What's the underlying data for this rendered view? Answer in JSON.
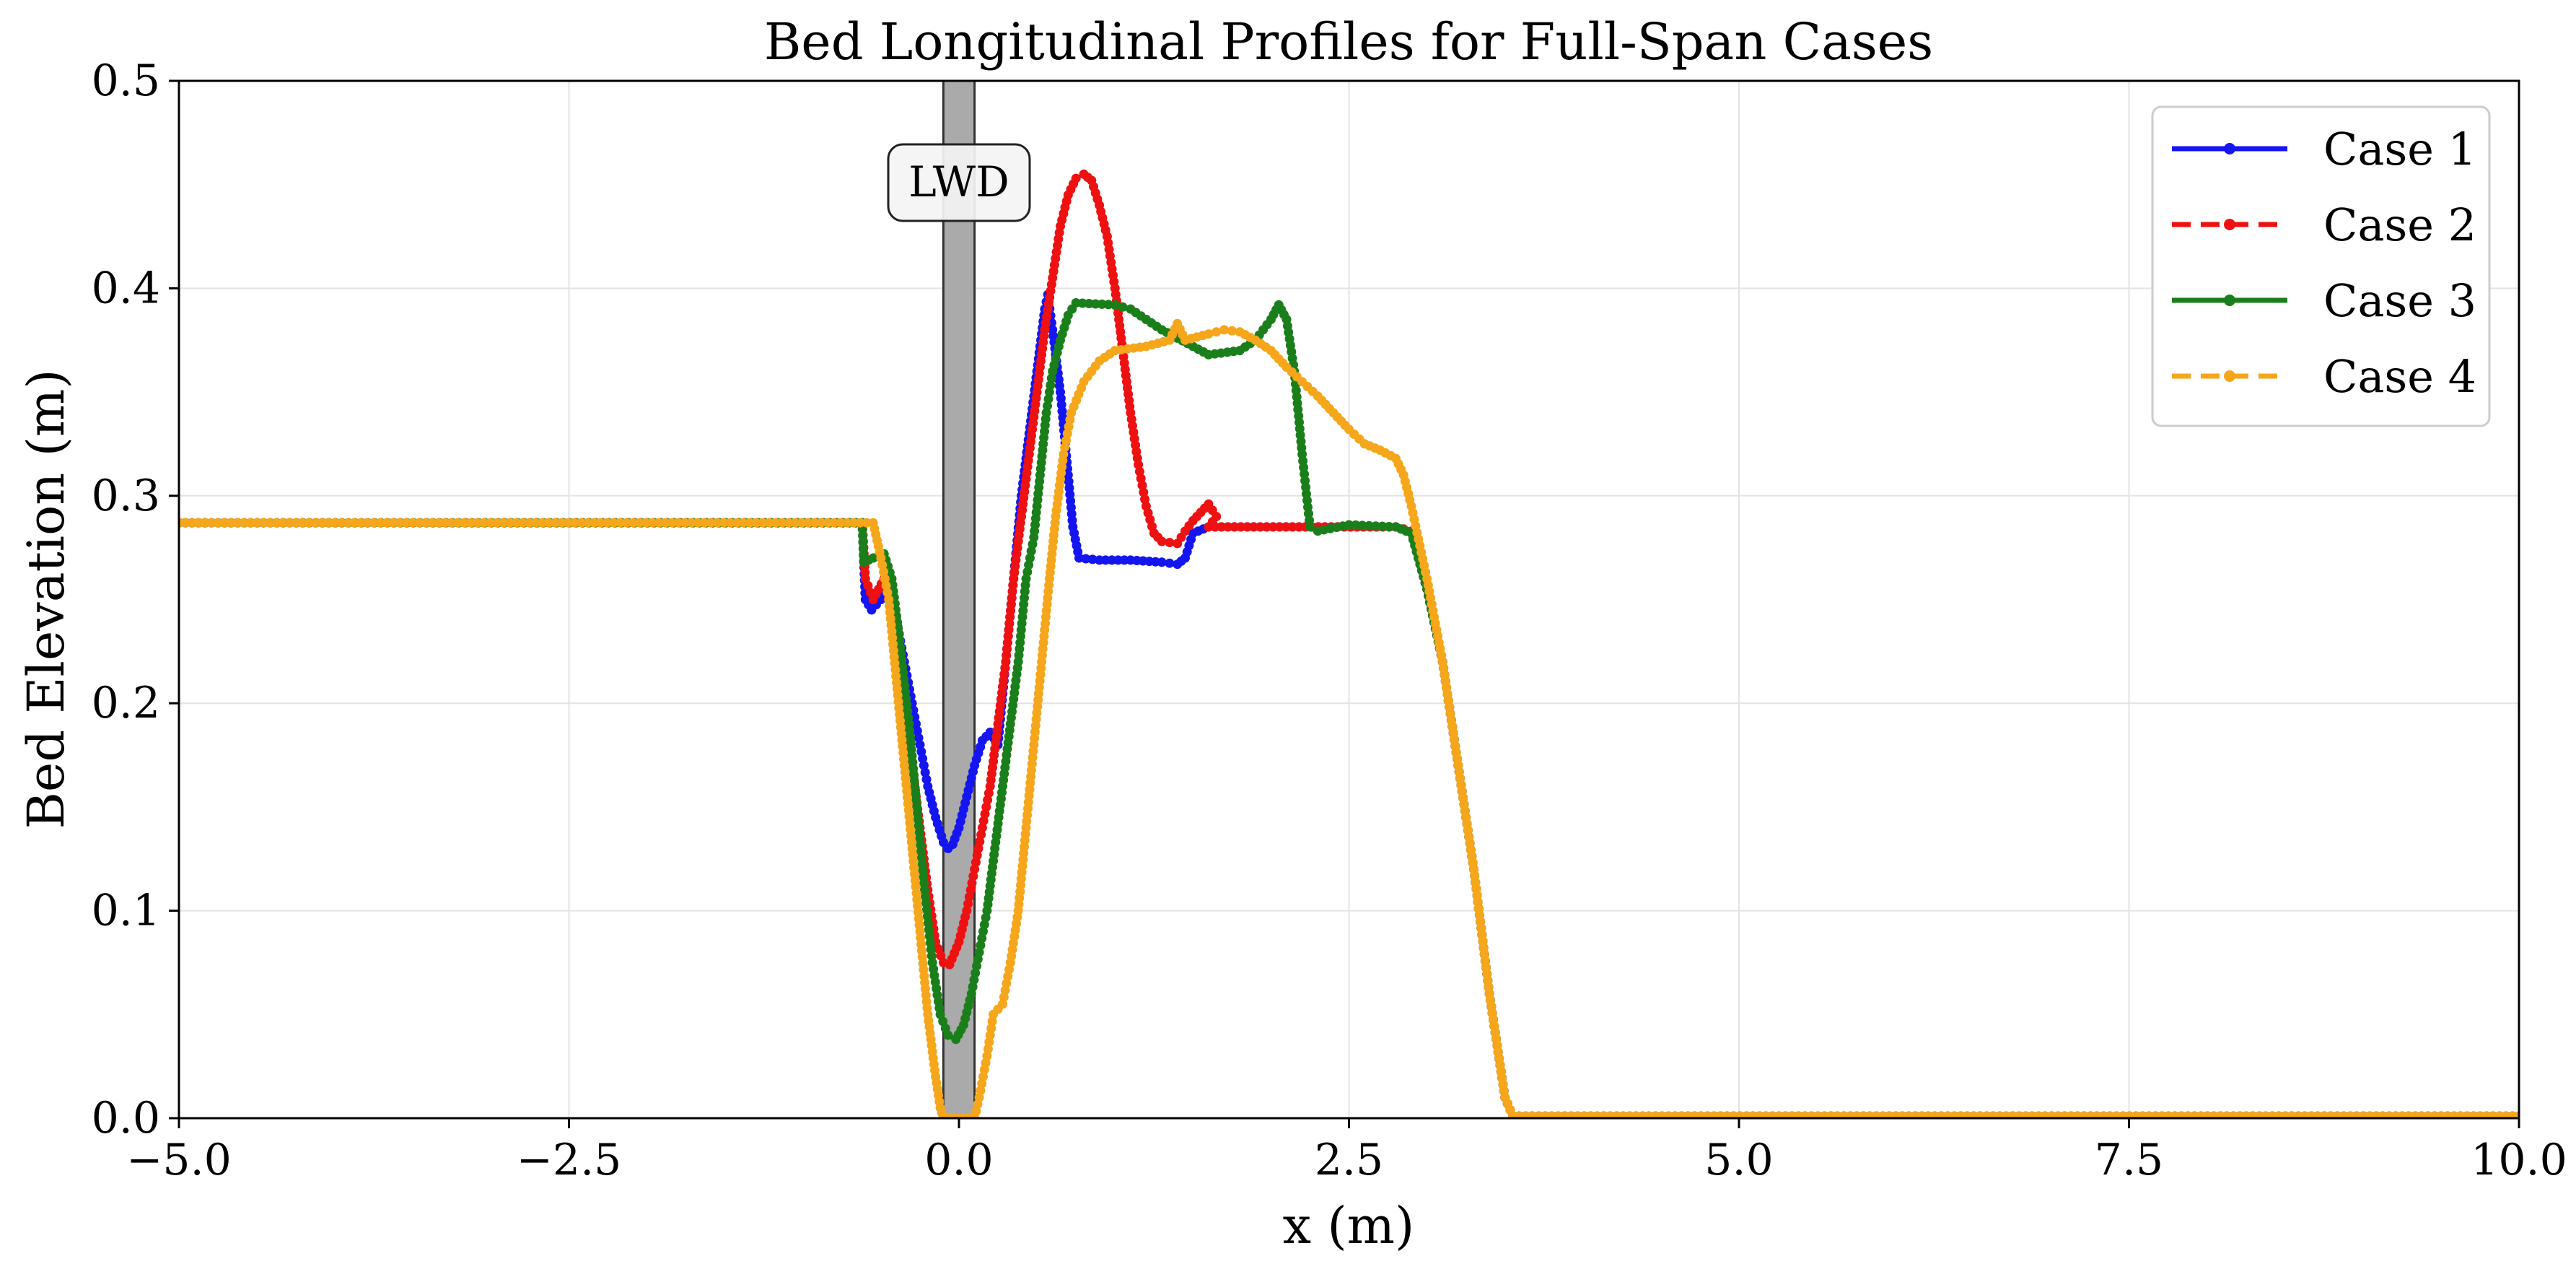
{
  "chart_data": {
    "type": "line",
    "title": "Bed Longitudinal Profiles for Full-Span Cases",
    "xlabel": "x (m)",
    "ylabel": "Bed Elevation (m)",
    "xlim": [
      -5.0,
      10.0
    ],
    "ylim": [
      0.0,
      0.5
    ],
    "x_ticks": [
      "−5.0",
      "−2.5",
      "0.0",
      "2.5",
      "5.0",
      "7.5",
      "10.0"
    ],
    "x_tick_values": [
      -5.0,
      -2.5,
      0.0,
      2.5,
      5.0,
      7.5,
      10.0
    ],
    "y_ticks": [
      "0.0",
      "0.1",
      "0.2",
      "0.3",
      "0.4",
      "0.5"
    ],
    "y_tick_values": [
      0.0,
      0.1,
      0.2,
      0.3,
      0.4,
      0.5
    ],
    "grid": true,
    "legend_position": "top-right",
    "annotation": {
      "label": "LWD",
      "x_range": [
        -0.1,
        0.1
      ]
    },
    "series": [
      {
        "name": "Case 1",
        "color": "#1515f0",
        "dash": "solid",
        "points": [
          [
            -5.0,
            0.287
          ],
          [
            -0.62,
            0.287
          ],
          [
            -0.6,
            0.25
          ],
          [
            -0.56,
            0.245
          ],
          [
            -0.5,
            0.25
          ],
          [
            -0.45,
            0.258
          ],
          [
            -0.4,
            0.24
          ],
          [
            -0.35,
            0.22
          ],
          [
            -0.3,
            0.2
          ],
          [
            -0.25,
            0.18
          ],
          [
            -0.2,
            0.16
          ],
          [
            -0.15,
            0.145
          ],
          [
            -0.1,
            0.133
          ],
          [
            -0.07,
            0.13
          ],
          [
            -0.04,
            0.132
          ],
          [
            0.0,
            0.14
          ],
          [
            0.05,
            0.155
          ],
          [
            0.1,
            0.17
          ],
          [
            0.15,
            0.182
          ],
          [
            0.2,
            0.186
          ],
          [
            0.25,
            0.18
          ],
          [
            0.3,
            0.22
          ],
          [
            0.35,
            0.26
          ],
          [
            0.4,
            0.3
          ],
          [
            0.45,
            0.33
          ],
          [
            0.5,
            0.36
          ],
          [
            0.55,
            0.39
          ],
          [
            0.57,
            0.397
          ],
          [
            0.6,
            0.38
          ],
          [
            0.65,
            0.35
          ],
          [
            0.7,
            0.31
          ],
          [
            0.73,
            0.285
          ],
          [
            0.77,
            0.27
          ],
          [
            0.9,
            0.269
          ],
          [
            1.1,
            0.269
          ],
          [
            1.3,
            0.268
          ],
          [
            1.4,
            0.267
          ],
          [
            1.45,
            0.27
          ],
          [
            1.5,
            0.282
          ],
          [
            1.6,
            0.285
          ],
          [
            2.8,
            0.285
          ],
          [
            2.9,
            0.282
          ],
          [
            3.0,
            0.255
          ],
          [
            3.1,
            0.22
          ],
          [
            3.2,
            0.17
          ],
          [
            3.3,
            0.12
          ],
          [
            3.4,
            0.06
          ],
          [
            3.5,
            0.01
          ],
          [
            3.55,
            0.001
          ],
          [
            10.0,
            0.001
          ]
        ]
      },
      {
        "name": "Case 2",
        "color": "#ee1111",
        "dash": "dashed",
        "points": [
          [
            -5.0,
            0.287
          ],
          [
            -0.62,
            0.287
          ],
          [
            -0.6,
            0.26
          ],
          [
            -0.55,
            0.25
          ],
          [
            -0.48,
            0.26
          ],
          [
            -0.43,
            0.245
          ],
          [
            -0.35,
            0.2
          ],
          [
            -0.3,
            0.17
          ],
          [
            -0.25,
            0.14
          ],
          [
            -0.2,
            0.11
          ],
          [
            -0.15,
            0.085
          ],
          [
            -0.1,
            0.075
          ],
          [
            -0.06,
            0.074
          ],
          [
            0.0,
            0.085
          ],
          [
            0.05,
            0.1
          ],
          [
            0.1,
            0.12
          ],
          [
            0.15,
            0.14
          ],
          [
            0.2,
            0.16
          ],
          [
            0.25,
            0.19
          ],
          [
            0.3,
            0.22
          ],
          [
            0.35,
            0.26
          ],
          [
            0.4,
            0.29
          ],
          [
            0.45,
            0.32
          ],
          [
            0.5,
            0.35
          ],
          [
            0.55,
            0.38
          ],
          [
            0.6,
            0.405
          ],
          [
            0.65,
            0.43
          ],
          [
            0.7,
            0.445
          ],
          [
            0.75,
            0.453
          ],
          [
            0.8,
            0.455
          ],
          [
            0.85,
            0.452
          ],
          [
            0.9,
            0.44
          ],
          [
            0.95,
            0.425
          ],
          [
            1.0,
            0.4
          ],
          [
            1.05,
            0.37
          ],
          [
            1.1,
            0.34
          ],
          [
            1.15,
            0.315
          ],
          [
            1.2,
            0.295
          ],
          [
            1.25,
            0.282
          ],
          [
            1.3,
            0.278
          ],
          [
            1.4,
            0.277
          ],
          [
            1.45,
            0.283
          ],
          [
            1.5,
            0.288
          ],
          [
            1.55,
            0.292
          ],
          [
            1.6,
            0.296
          ],
          [
            1.65,
            0.29
          ],
          [
            1.6,
            0.285
          ],
          [
            2.8,
            0.285
          ],
          [
            2.9,
            0.283
          ],
          [
            3.0,
            0.255
          ],
          [
            3.1,
            0.22
          ],
          [
            3.2,
            0.17
          ],
          [
            3.3,
            0.12
          ],
          [
            3.4,
            0.06
          ],
          [
            3.5,
            0.01
          ],
          [
            3.55,
            0.001
          ],
          [
            10.0,
            0.001
          ]
        ]
      },
      {
        "name": "Case 3",
        "color": "#1a7f1a",
        "dash": "solid",
        "points": [
          [
            -5.0,
            0.287
          ],
          [
            -0.62,
            0.287
          ],
          [
            -0.61,
            0.268
          ],
          [
            -0.55,
            0.27
          ],
          [
            -0.48,
            0.272
          ],
          [
            -0.43,
            0.26
          ],
          [
            -0.38,
            0.23
          ],
          [
            -0.32,
            0.19
          ],
          [
            -0.27,
            0.15
          ],
          [
            -0.22,
            0.11
          ],
          [
            -0.17,
            0.075
          ],
          [
            -0.12,
            0.05
          ],
          [
            -0.07,
            0.04
          ],
          [
            -0.02,
            0.038
          ],
          [
            0.03,
            0.045
          ],
          [
            0.08,
            0.06
          ],
          [
            0.13,
            0.08
          ],
          [
            0.18,
            0.1
          ],
          [
            0.23,
            0.13
          ],
          [
            0.28,
            0.16
          ],
          [
            0.33,
            0.19
          ],
          [
            0.38,
            0.22
          ],
          [
            0.43,
            0.26
          ],
          [
            0.48,
            0.28
          ],
          [
            0.52,
            0.31
          ],
          [
            0.56,
            0.34
          ],
          [
            0.6,
            0.36
          ],
          [
            0.65,
            0.375
          ],
          [
            0.7,
            0.387
          ],
          [
            0.75,
            0.393
          ],
          [
            1.0,
            0.392
          ],
          [
            1.1,
            0.39
          ],
          [
            1.2,
            0.385
          ],
          [
            1.3,
            0.38
          ],
          [
            1.4,
            0.376
          ],
          [
            1.5,
            0.372
          ],
          [
            1.6,
            0.368
          ],
          [
            1.8,
            0.37
          ],
          [
            1.9,
            0.375
          ],
          [
            2.0,
            0.385
          ],
          [
            2.05,
            0.392
          ],
          [
            2.1,
            0.385
          ],
          [
            2.15,
            0.36
          ],
          [
            2.2,
            0.32
          ],
          [
            2.25,
            0.285
          ],
          [
            2.3,
            0.283
          ],
          [
            2.5,
            0.286
          ],
          [
            2.8,
            0.285
          ],
          [
            2.9,
            0.282
          ],
          [
            3.0,
            0.255
          ],
          [
            3.1,
            0.22
          ],
          [
            3.2,
            0.17
          ],
          [
            3.3,
            0.12
          ],
          [
            3.4,
            0.06
          ],
          [
            3.5,
            0.01
          ],
          [
            3.55,
            0.001
          ],
          [
            10.0,
            0.001
          ]
        ]
      },
      {
        "name": "Case 4",
        "color": "#f5a61b",
        "dash": "dashed",
        "points": [
          [
            -5.0,
            0.287
          ],
          [
            -0.55,
            0.287
          ],
          [
            -0.5,
            0.27
          ],
          [
            -0.45,
            0.25
          ],
          [
            -0.4,
            0.21
          ],
          [
            -0.35,
            0.17
          ],
          [
            -0.3,
            0.13
          ],
          [
            -0.25,
            0.09
          ],
          [
            -0.2,
            0.05
          ],
          [
            -0.15,
            0.02
          ],
          [
            -0.12,
            0.005
          ],
          [
            -0.1,
            0.0
          ],
          [
            0.1,
            0.0
          ],
          [
            0.13,
            0.01
          ],
          [
            0.18,
            0.03
          ],
          [
            0.22,
            0.05
          ],
          [
            0.28,
            0.055
          ],
          [
            0.33,
            0.075
          ],
          [
            0.38,
            0.1
          ],
          [
            0.43,
            0.14
          ],
          [
            0.48,
            0.18
          ],
          [
            0.53,
            0.22
          ],
          [
            0.58,
            0.26
          ],
          [
            0.62,
            0.29
          ],
          [
            0.67,
            0.32
          ],
          [
            0.72,
            0.34
          ],
          [
            0.8,
            0.355
          ],
          [
            0.9,
            0.365
          ],
          [
            1.0,
            0.37
          ],
          [
            1.2,
            0.372
          ],
          [
            1.35,
            0.375
          ],
          [
            1.4,
            0.383
          ],
          [
            1.45,
            0.375
          ],
          [
            1.6,
            0.378
          ],
          [
            1.7,
            0.38
          ],
          [
            1.8,
            0.379
          ],
          [
            1.9,
            0.375
          ],
          [
            2.0,
            0.37
          ],
          [
            2.1,
            0.362
          ],
          [
            2.2,
            0.355
          ],
          [
            2.3,
            0.348
          ],
          [
            2.4,
            0.34
          ],
          [
            2.5,
            0.332
          ],
          [
            2.6,
            0.325
          ],
          [
            2.7,
            0.322
          ],
          [
            2.8,
            0.318
          ],
          [
            2.85,
            0.31
          ],
          [
            2.9,
            0.295
          ],
          [
            3.0,
            0.26
          ],
          [
            3.1,
            0.22
          ],
          [
            3.2,
            0.17
          ],
          [
            3.3,
            0.12
          ],
          [
            3.4,
            0.06
          ],
          [
            3.5,
            0.01
          ],
          [
            3.55,
            0.001
          ],
          [
            10.0,
            0.001
          ]
        ]
      }
    ]
  }
}
